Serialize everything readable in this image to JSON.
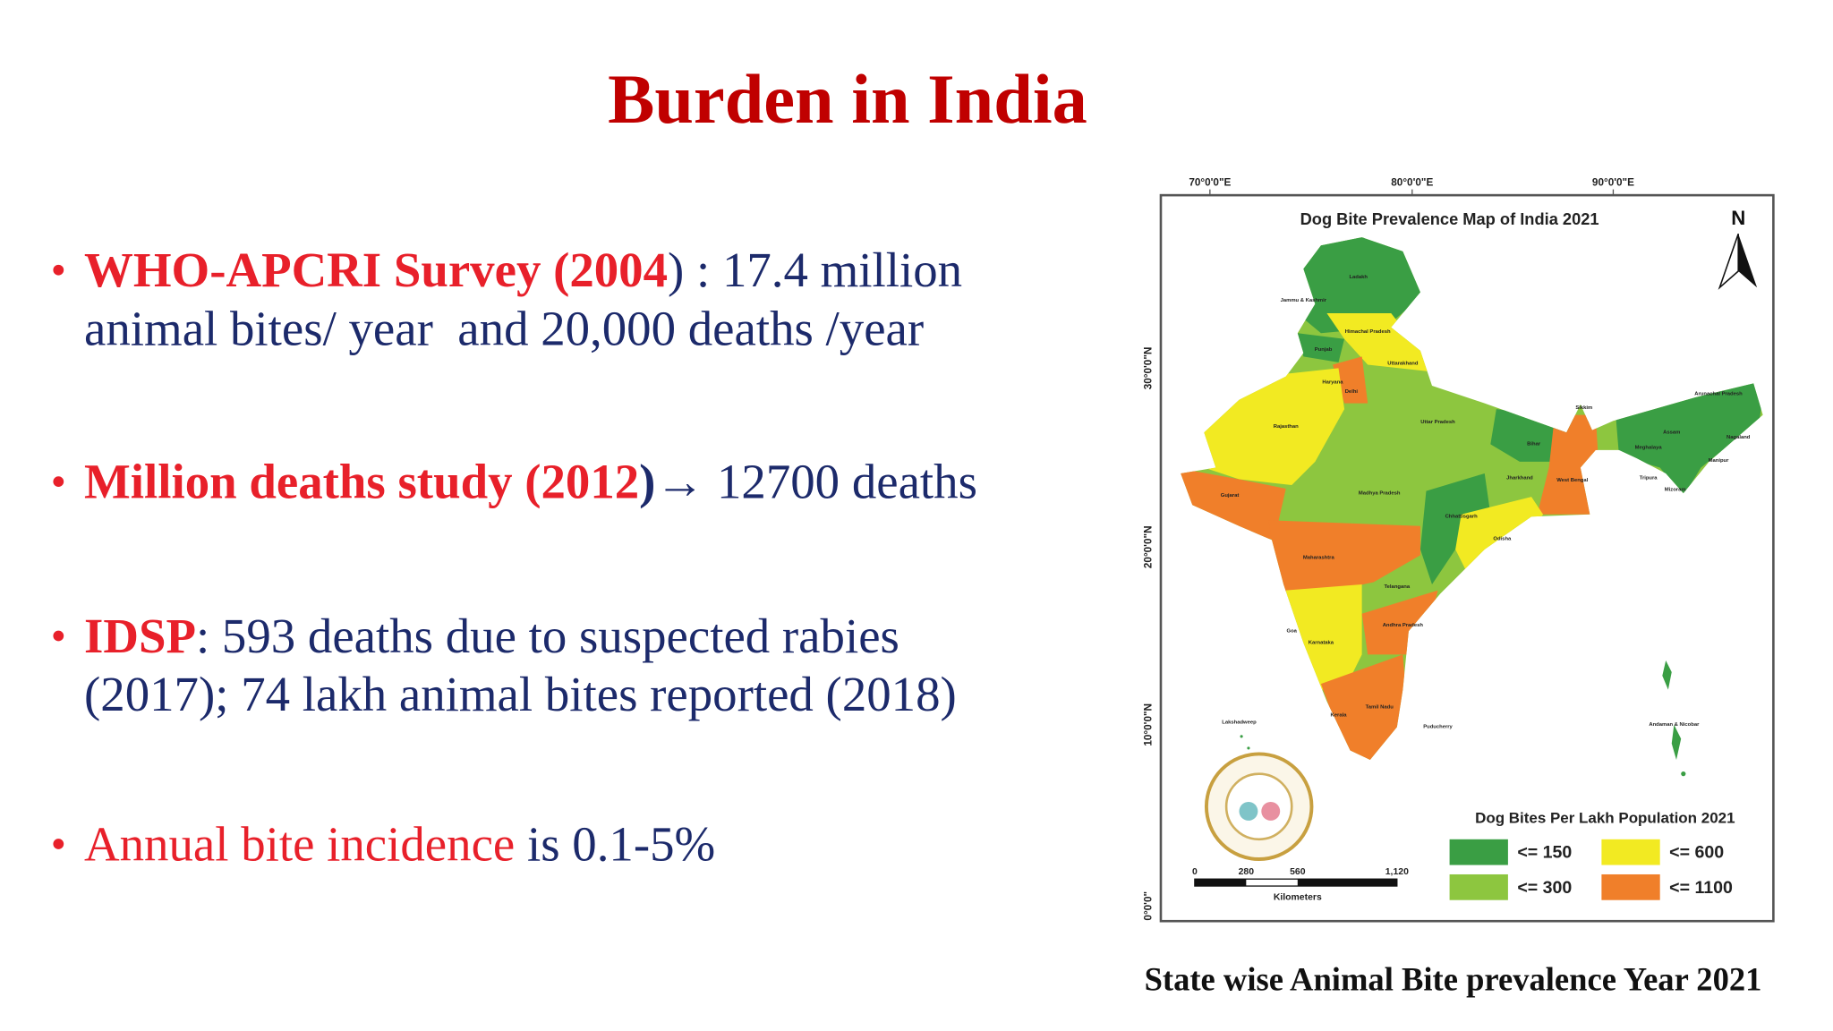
{
  "title": "Burden in India",
  "bullets": [
    {
      "lines": [
        [
          {
            "text": "WHO-APCRI Survey (2004",
            "color": "#e8202a",
            "bold": true
          },
          {
            "text": ") : 17.4 million",
            "color": "#1c2a6b",
            "bold": false
          }
        ],
        [
          {
            "text": "animal bites/ year  and 20,000 deaths /year",
            "color": "#1c2a6b",
            "bold": false
          }
        ]
      ]
    },
    {
      "lines": [
        [
          {
            "text": "Million deaths study (2012",
            "color": "#e8202a",
            "bold": true
          },
          {
            "text": ")→",
            "color": "#1c2a6b",
            "bold": true
          },
          {
            "text": " 12700 deaths",
            "color": "#1c2a6b",
            "bold": false
          }
        ]
      ]
    },
    {
      "lines": [
        [
          {
            "text": "IDSP",
            "color": "#e8202a",
            "bold": true
          },
          {
            "text": ": 593 deaths due to suspected rabies",
            "color": "#1c2a6b",
            "bold": false
          }
        ],
        [
          {
            "text": "(2017); 74 lakh animal bites reported (2018)",
            "color": "#1c2a6b",
            "bold": false
          }
        ]
      ]
    },
    {
      "lines": [
        [
          {
            "text": "Annual bite incidence",
            "color": "#e8202a",
            "bold": false
          },
          {
            "text": " is 0.1-5%",
            "color": "#1c2a6b",
            "bold": false
          }
        ]
      ]
    }
  ],
  "map": {
    "title": "Dog Bite Prevalence Map of India 2021",
    "north": "N",
    "longitudes": [
      "70°0'0\"E",
      "80°0'0\"E",
      "90°0'0\"E"
    ],
    "latitudes": [
      "30°0'0\"N",
      "20°0'0\"N",
      "10°0'0\"N",
      "0°0'0\""
    ],
    "legend_title": "Dog Bites Per Lakh Population 2021",
    "legend": [
      {
        "label": "<= 150",
        "color": "#3a9e44"
      },
      {
        "label": "<= 300",
        "color": "#8dc63f"
      },
      {
        "label": "<= 600",
        "color": "#f2ea22"
      },
      {
        "label": "<= 1100",
        "color": "#f07f2a"
      }
    ],
    "scale_labels": [
      "0",
      "280",
      "560",
      "1,120"
    ],
    "scale_unit": "Kilometers",
    "states": [
      "Ladakh",
      "Jammu & Kashmir",
      "Himachal Pradesh",
      "Punjab",
      "Uttarakhand",
      "Haryana",
      "Delhi",
      "Rajasthan",
      "Uttar Pradesh",
      "Bihar",
      "Sikkim",
      "Arunachal Pradesh",
      "Assam",
      "Nagaland",
      "Meghalaya",
      "Manipur",
      "Tripura",
      "Mizoram",
      "Jharkhand",
      "West Bengal",
      "Gujarat",
      "Madhya Pradesh",
      "Chhattisgarh",
      "Odisha",
      "Maharashtra",
      "Telangana",
      "Andhra Pradesh",
      "Goa",
      "Karnataka",
      "Tamil Nadu",
      "Kerala",
      "Puducherry",
      "Lakshadweep",
      "Andaman & Nicobar"
    ]
  },
  "caption": "State wise Animal Bite prevalence Year 2021"
}
